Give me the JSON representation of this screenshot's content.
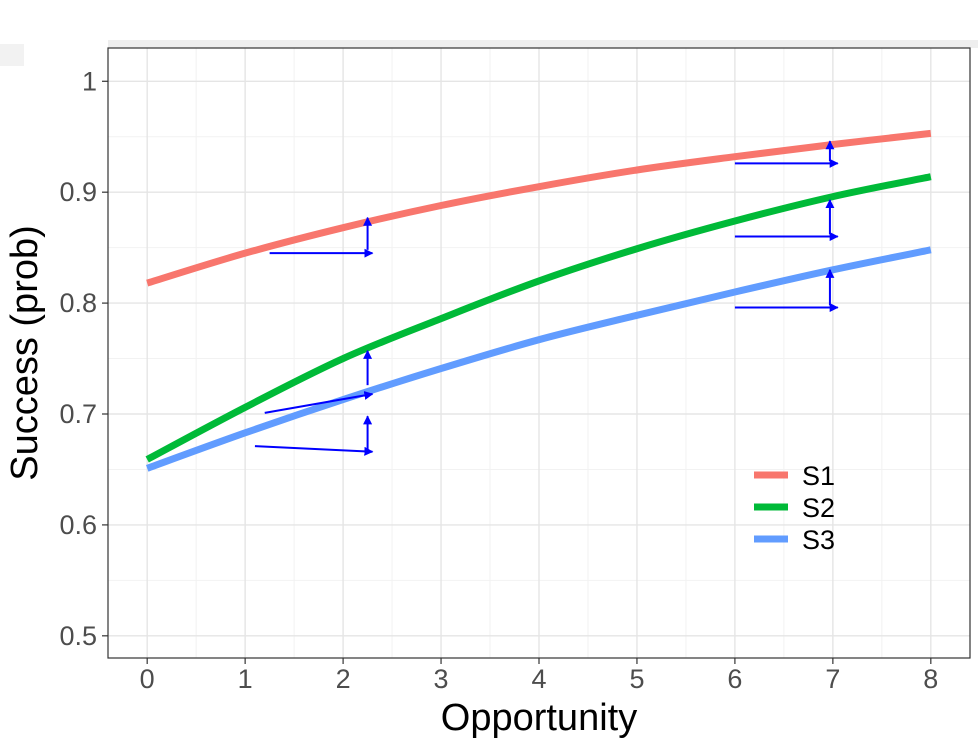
{
  "chart_data": {
    "type": "line",
    "xlabel": "Opportunity",
    "ylabel": "Success (prob)",
    "xlim": [
      -0.4,
      8.4
    ],
    "ylim": [
      0.48,
      1.03
    ],
    "x_ticks": [
      "0",
      "1",
      "2",
      "3",
      "4",
      "5",
      "6",
      "7",
      "8"
    ],
    "y_ticks": [
      "0.5",
      "0.6",
      "0.7",
      "0.8",
      "0.9",
      "1"
    ],
    "grid": true,
    "legend_position": "bottom-right",
    "x": [
      0,
      1,
      2,
      3,
      4,
      5,
      6,
      7,
      8
    ],
    "series": [
      {
        "name": "S1",
        "color": "#F8766D",
        "values": [
          0.818,
          0.845,
          0.868,
          0.888,
          0.905,
          0.92,
          0.932,
          0.943,
          0.953
        ]
      },
      {
        "name": "S2",
        "color": "#00BA38",
        "values": [
          0.659,
          0.706,
          0.75,
          0.786,
          0.82,
          0.849,
          0.874,
          0.896,
          0.914
        ]
      },
      {
        "name": "S3",
        "color": "#619CFF",
        "values": [
          0.651,
          0.683,
          0.713,
          0.741,
          0.767,
          0.789,
          0.81,
          0.83,
          0.848
        ]
      }
    ],
    "annotations": {
      "color": "#0000FF",
      "horizontal_arrows": [
        {
          "x_from": 1.25,
          "x_to": 2.3,
          "y": 0.845
        },
        {
          "x_from": 1.2,
          "x_to": 2.3,
          "y": 0.701,
          "y_to": 0.718
        },
        {
          "x_from": 1.1,
          "x_to": 2.3,
          "y": 0.671,
          "y_to": 0.666
        },
        {
          "x_from": 6.0,
          "x_to": 7.05,
          "y": 0.926
        },
        {
          "x_from": 6.0,
          "x_to": 7.05,
          "y": 0.86
        },
        {
          "x_from": 6.0,
          "x_to": 7.05,
          "y": 0.796
        }
      ],
      "vertical_arrows": [
        {
          "x": 2.25,
          "y_from": 0.848,
          "y_to": 0.877
        },
        {
          "x": 2.25,
          "y_from": 0.726,
          "y_to": 0.757
        },
        {
          "x": 2.25,
          "y_from": 0.668,
          "y_to": 0.698
        },
        {
          "x": 6.97,
          "y_from": 0.928,
          "y_to": 0.946
        },
        {
          "x": 6.97,
          "y_from": 0.862,
          "y_to": 0.893
        },
        {
          "x": 6.97,
          "y_from": 0.798,
          "y_to": 0.83
        }
      ]
    }
  }
}
